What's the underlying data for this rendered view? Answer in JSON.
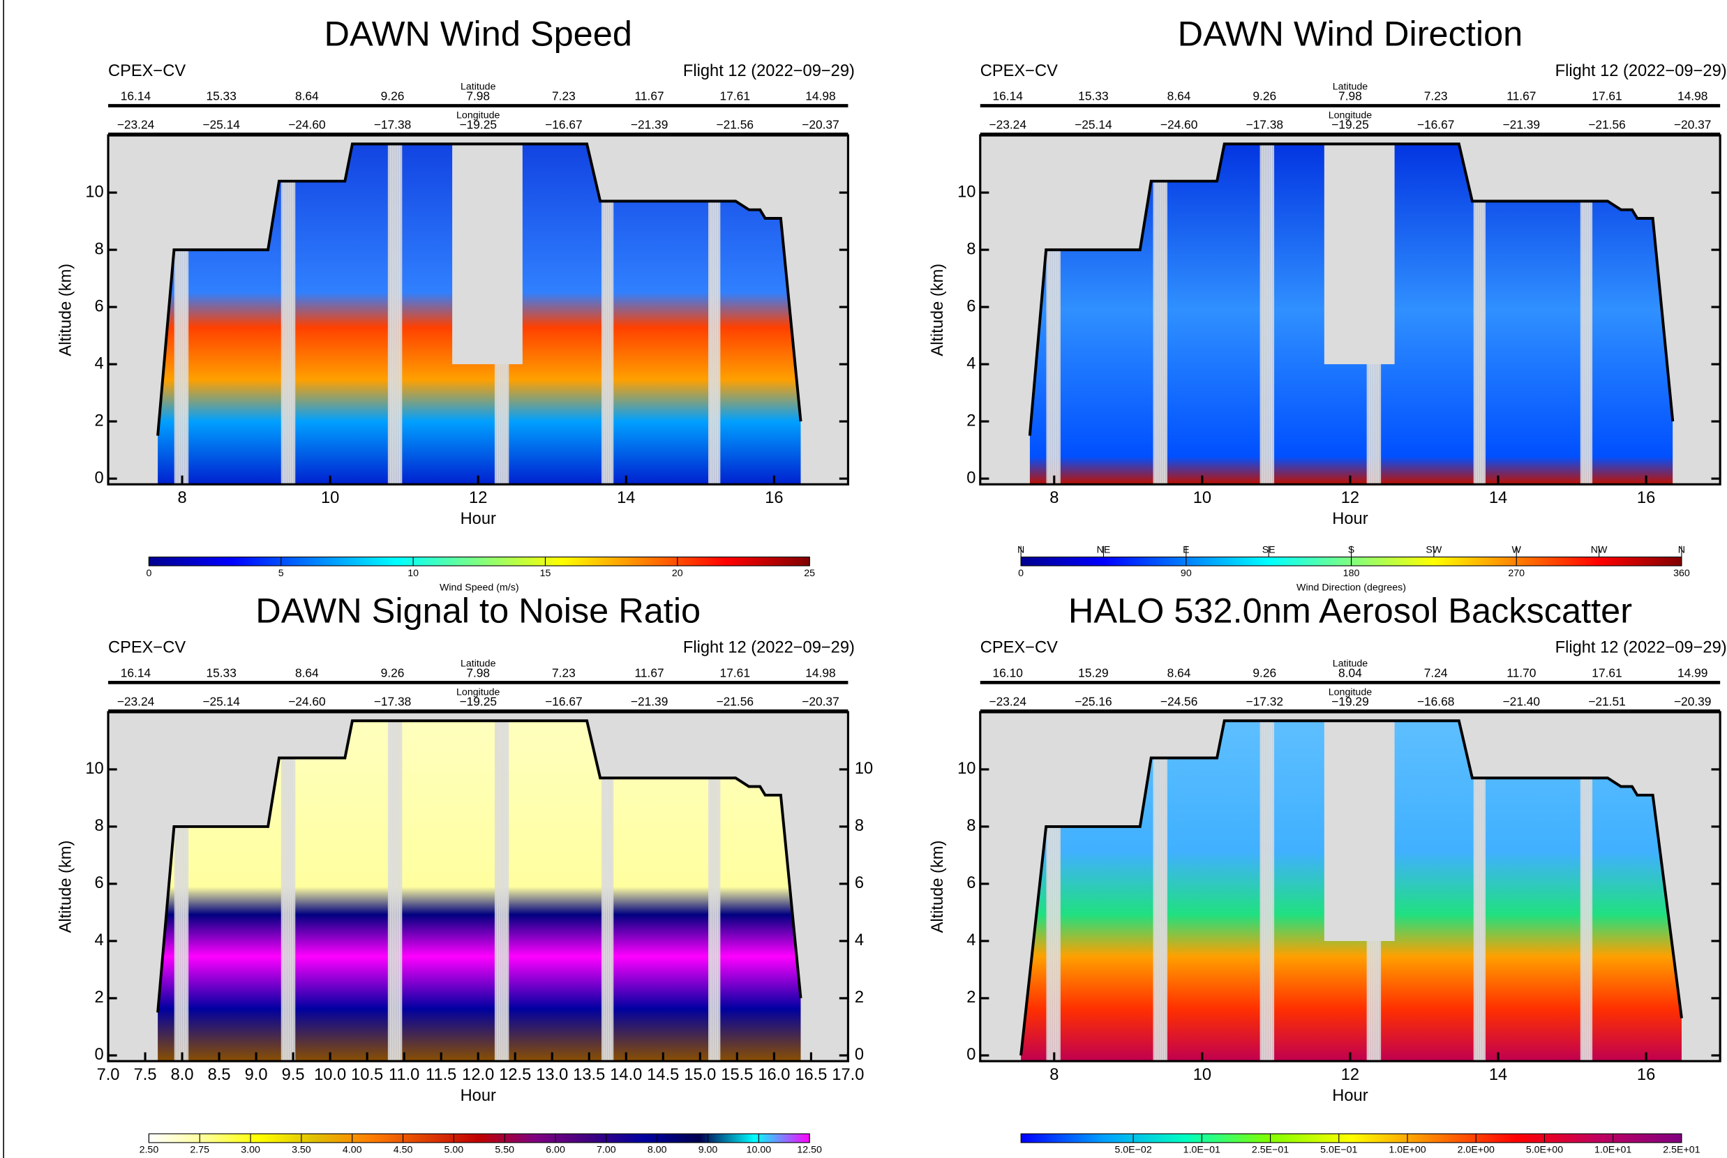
{
  "chart_data": [
    {
      "type": "curtain",
      "title": "DAWN Wind Speed",
      "left_label": "CPEX−CV",
      "right_label": "Flight 12 (2022−09−29)",
      "latitude_label": "Latitude",
      "latitudes": [
        "16.14",
        "15.33",
        "8.64",
        "9.26",
        "7.98",
        "7.23",
        "11.67",
        "17.61",
        "14.98"
      ],
      "longitude_label": "Longitude",
      "longitudes": [
        "−23.24",
        "−25.14",
        "−24.60",
        "−17.38",
        "−19.25",
        "−16.67",
        "−21.39",
        "−21.56",
        "−20.37"
      ],
      "xlabel": "Hour",
      "ylabel": "Altitude (km)",
      "xlim": [
        7,
        17
      ],
      "xticks": [
        8,
        10,
        12,
        14,
        16
      ],
      "ylim": [
        -0.2,
        12
      ],
      "yticks": [
        0,
        2,
        4,
        6,
        8,
        10
      ],
      "track_hour": [
        7.67,
        7.89,
        9.16,
        9.31,
        10.2,
        10.3,
        13.47,
        13.65,
        15.48,
        15.66,
        15.81,
        15.88,
        16.09,
        16.36
      ],
      "track_altitude": [
        1.5,
        8.0,
        8.0,
        10.4,
        10.4,
        11.7,
        11.7,
        9.7,
        9.7,
        9.4,
        9.4,
        9.1,
        9.1,
        2.0
      ],
      "track_color": "#000000",
      "colorbar_label": "Wind Speed (m/s)",
      "clim": [
        0,
        25
      ],
      "colorbar_ticks": [
        0,
        5,
        10,
        15,
        20,
        25
      ],
      "colormap": [
        "#00008f",
        "#0000ff",
        "#0080ff",
        "#00ffff",
        "#80ff80",
        "#ffff00",
        "#ff8000",
        "#ff0000",
        "#800000"
      ]
    },
    {
      "type": "curtain",
      "title": "DAWN Wind Direction",
      "left_label": "CPEX−CV",
      "right_label": "Flight 12 (2022−09−29)",
      "latitude_label": "Latitude",
      "latitudes": [
        "16.14",
        "15.33",
        "8.64",
        "9.26",
        "7.98",
        "7.23",
        "11.67",
        "17.61",
        "14.98"
      ],
      "longitude_label": "Longitude",
      "longitudes": [
        "−23.24",
        "−25.14",
        "−24.60",
        "−17.38",
        "−19.25",
        "−16.67",
        "−21.39",
        "−21.56",
        "−20.37"
      ],
      "xlabel": "Hour",
      "ylabel": "Altitude (km)",
      "xlim": [
        7,
        17
      ],
      "xticks": [
        8,
        10,
        12,
        14,
        16
      ],
      "ylim": [
        -0.2,
        12
      ],
      "yticks": [
        0,
        2,
        4,
        6,
        8,
        10
      ],
      "track_hour": [
        7.67,
        7.89,
        9.16,
        9.31,
        10.2,
        10.3,
        13.47,
        13.65,
        15.48,
        15.66,
        15.81,
        15.88,
        16.09,
        16.36
      ],
      "track_altitude": [
        1.5,
        8.0,
        8.0,
        10.4,
        10.4,
        11.7,
        11.7,
        9.7,
        9.7,
        9.4,
        9.4,
        9.1,
        9.1,
        2.0
      ],
      "track_color": "#000000",
      "colorbar_label": "Wind Direction (degrees)",
      "clim": [
        0,
        360
      ],
      "colorbar_ticks": [
        0,
        90,
        180,
        270,
        360
      ],
      "compass_ticks": [
        {
          "value": 0,
          "label": "N"
        },
        {
          "value": 45,
          "label": "NE"
        },
        {
          "value": 90,
          "label": "E"
        },
        {
          "value": 135,
          "label": "SE"
        },
        {
          "value": 180,
          "label": "S"
        },
        {
          "value": 225,
          "label": "SW"
        },
        {
          "value": 270,
          "label": "W"
        },
        {
          "value": 315,
          "label": "NW"
        },
        {
          "value": 360,
          "label": "N"
        }
      ],
      "colormap": [
        "#00008f",
        "#0000ff",
        "#0080ff",
        "#00ffff",
        "#80ff80",
        "#ffff00",
        "#ff8000",
        "#ff0000",
        "#800000"
      ]
    },
    {
      "type": "curtain",
      "title": "DAWN Signal to Noise Ratio",
      "left_label": "CPEX−CV",
      "right_label": "Flight 12 (2022−09−29)",
      "latitude_label": "Latitude",
      "latitudes": [
        "16.14",
        "15.33",
        "8.64",
        "9.26",
        "7.98",
        "7.23",
        "11.67",
        "17.61",
        "14.98"
      ],
      "longitude_label": "Longitude",
      "longitudes": [
        "−23.24",
        "−25.14",
        "−24.60",
        "−17.38",
        "−19.25",
        "−16.67",
        "−21.39",
        "−21.56",
        "−20.37"
      ],
      "xlabel": "Hour",
      "ylabel": "Altitude (km)",
      "xlim": [
        7,
        17
      ],
      "xticks": [
        {
          "value": 7,
          "label": "7.0"
        },
        7.5,
        {
          "value": 8,
          "label": "8.0"
        },
        8.5,
        {
          "value": 9,
          "label": "9.0"
        },
        9.5,
        {
          "value": 10,
          "label": "10.0"
        },
        10.5,
        {
          "value": 11,
          "label": "11.0"
        },
        11.5,
        {
          "value": 12,
          "label": "12.0"
        },
        12.5,
        {
          "value": 13,
          "label": "13.0"
        },
        13.5,
        {
          "value": 14,
          "label": "14.0"
        },
        14.5,
        {
          "value": 15,
          "label": "15.0"
        },
        15.5,
        {
          "value": 16,
          "label": "16.0"
        },
        16.5,
        {
          "value": 17,
          "label": "17.0"
        }
      ],
      "ylim": [
        -0.2,
        12
      ],
      "yticks": [
        0,
        2,
        4,
        6,
        8,
        10
      ],
      "right_axis": true,
      "track_hour": [
        7.67,
        7.89,
        9.16,
        9.31,
        10.2,
        10.3,
        13.47,
        13.65,
        15.48,
        15.66,
        15.81,
        15.88,
        16.09,
        16.36
      ],
      "track_altitude": [
        1.5,
        8.0,
        8.0,
        10.4,
        10.4,
        11.7,
        11.7,
        9.7,
        9.7,
        9.4,
        9.4,
        9.1,
        9.1,
        2.0
      ],
      "track_color": "#000000",
      "colorbar_labels": [
        "2.50",
        "2.75",
        "3.00",
        "3.50",
        "4.00",
        "4.50",
        "5.00",
        "5.50",
        "6.00",
        "7.00",
        "8.00",
        "9.00",
        "10.00",
        "12.50"
      ],
      "colormap": [
        "#ffffff",
        "#ffff99",
        "#ffff00",
        "#e0c000",
        "#ff8000",
        "#e04000",
        "#c00000",
        "#800080",
        "#400080",
        "#0000a0",
        "#000050",
        "#00ffff",
        "#ff00ff"
      ]
    },
    {
      "type": "curtain",
      "title": "HALO 532.0nm Aerosol Backscatter",
      "left_label": "CPEX−CV",
      "right_label": "Flight 12 (2022−09−29)",
      "latitude_label": "Latitude",
      "latitudes": [
        "16.10",
        "15.29",
        "8.64",
        "9.26",
        "8.04",
        "7.24",
        "11.70",
        "17.61",
        "14.99"
      ],
      "longitude_label": "Longitude",
      "longitudes": [
        "−23.24",
        "−25.16",
        "−24.56",
        "−17.32",
        "−19.29",
        "−16.68",
        "−21.40",
        "−21.51",
        "−20.39"
      ],
      "xlabel": "Hour",
      "ylabel": "Altitude (km)",
      "xlim": [
        7,
        17
      ],
      "xticks": [
        8,
        10,
        12,
        14,
        16
      ],
      "ylim": [
        -0.2,
        12
      ],
      "yticks": [
        0,
        2,
        4,
        6,
        8,
        10
      ],
      "track_hour": [
        7.55,
        7.89,
        9.16,
        9.31,
        10.2,
        10.3,
        13.47,
        13.65,
        15.48,
        15.66,
        15.81,
        15.88,
        16.09,
        16.48
      ],
      "track_altitude": [
        0,
        8.0,
        8.0,
        10.4,
        10.4,
        11.7,
        11.7,
        9.7,
        9.7,
        9.4,
        9.4,
        9.1,
        9.1,
        1.3
      ],
      "track_color": "#000000",
      "colorbar_labels": [
        "5.0E−02",
        "1.0E−01",
        "2.5E−01",
        "5.0E−01",
        "1.0E+00",
        "2.0E+00",
        "5.0E+00",
        "1.0E+01",
        "2.5E+01"
      ],
      "colormap": [
        "#0000ff",
        "#00a0ff",
        "#00ffc0",
        "#80ff00",
        "#ffff00",
        "#ff8000",
        "#ff0000",
        "#c00060",
        "#800080"
      ]
    }
  ]
}
